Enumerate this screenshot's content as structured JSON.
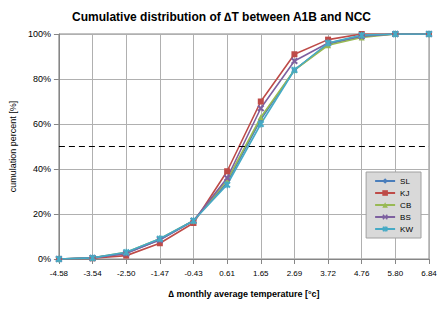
{
  "chart_data": {
    "type": "line",
    "title": "Cumulative distribution of ∆T between A1B and NCC",
    "x_label": "∆ monthly average temperature [°c]",
    "y_label": "cumulation percent [%]",
    "categories": [
      "-4.58",
      "-3.54",
      "-2.50",
      "-1.47",
      "-0.43",
      "0.61",
      "1.65",
      "2.69",
      "3.72",
      "4.76",
      "5.80",
      "6.84"
    ],
    "series": [
      {
        "name": "SL",
        "color": "#4a7ebb",
        "marker": "diamond",
        "values": [
          0,
          0.5,
          2.5,
          8.5,
          17,
          34,
          62,
          84,
          95.5,
          99,
          100,
          100
        ]
      },
      {
        "name": "KJ",
        "color": "#be4b48",
        "marker": "square",
        "values": [
          0,
          0.3,
          1.5,
          7,
          16,
          39,
          70,
          91,
          97.5,
          100,
          100,
          100
        ]
      },
      {
        "name": "CB",
        "color": "#98b954",
        "marker": "triangle",
        "values": [
          0,
          0.5,
          3,
          9,
          17,
          35,
          63,
          84,
          95,
          98.5,
          100,
          100
        ]
      },
      {
        "name": "BS",
        "color": "#7d60a0",
        "marker": "x",
        "values": [
          0,
          0.5,
          2.5,
          8.5,
          17,
          36,
          67,
          88,
          96,
          99,
          100,
          100
        ]
      },
      {
        "name": "KW",
        "color": "#46aac5",
        "marker": "star",
        "values": [
          0,
          0.5,
          3,
          9,
          17,
          33,
          60,
          84,
          96,
          99.5,
          100,
          100
        ]
      }
    ],
    "ylim": [
      0,
      100
    ],
    "yticks": [
      {
        "value": 0,
        "label": "0%"
      },
      {
        "value": 20,
        "label": "20%"
      },
      {
        "value": 40,
        "label": "40%"
      },
      {
        "value": 60,
        "label": "60%"
      },
      {
        "value": 80,
        "label": "80%"
      },
      {
        "value": 100,
        "label": "100%"
      }
    ],
    "reference_line": 50,
    "grid": true,
    "legend": "right"
  }
}
